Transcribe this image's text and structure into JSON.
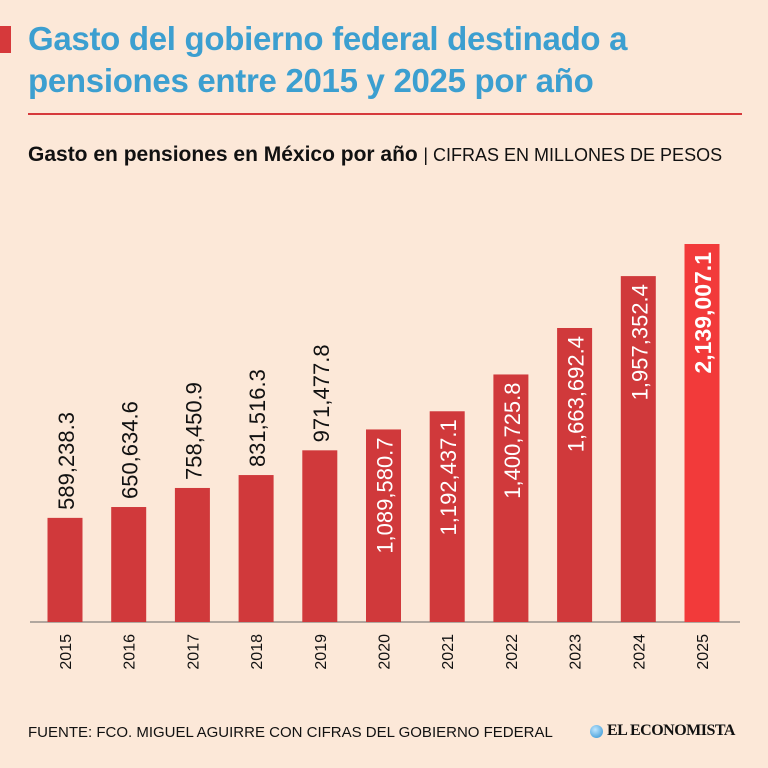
{
  "header": {
    "title": "Gasto del gobierno federal destinado a pensiones entre 2015 y 2025 por año"
  },
  "colors": {
    "bar": "#d0393b",
    "highlight": "#f23a3a",
    "title": "#3c9fd0",
    "background": "#fce8d8"
  },
  "chart_data": {
    "type": "bar",
    "title": "Gasto en pensiones en México por año",
    "subtitle": "| CIFRAS EN MILLONES DE PESOS",
    "categories": [
      "2015",
      "2016",
      "2017",
      "2018",
      "2019",
      "2020",
      "2021",
      "2022",
      "2023",
      "2024",
      "2025"
    ],
    "values": [
      589238.3,
      650634.6,
      758450.9,
      831516.3,
      971477.8,
      1089580.7,
      1192437.1,
      1400725.8,
      1663692.4,
      1957352.4,
      2139007.1
    ],
    "labels": [
      "589,238.3",
      "650,634.6",
      "758,450.9",
      "831,516.3",
      "971,477.8",
      "1,089,580.7",
      "1,192,437.1",
      "1,400,725.8",
      "1,663,692.4",
      "1,957,352.4",
      "2,139,007.1"
    ],
    "highlight_index": 10,
    "ylim": [
      0,
      2139007.1
    ],
    "xlabel": "",
    "ylabel": "",
    "grid": false
  },
  "footer": {
    "source": "FUENTE: FCO. MIGUEL AGUIRRE CON CIFRAS DEL GOBIERNO FEDERAL",
    "logo": "EL ECONOMISTA"
  }
}
